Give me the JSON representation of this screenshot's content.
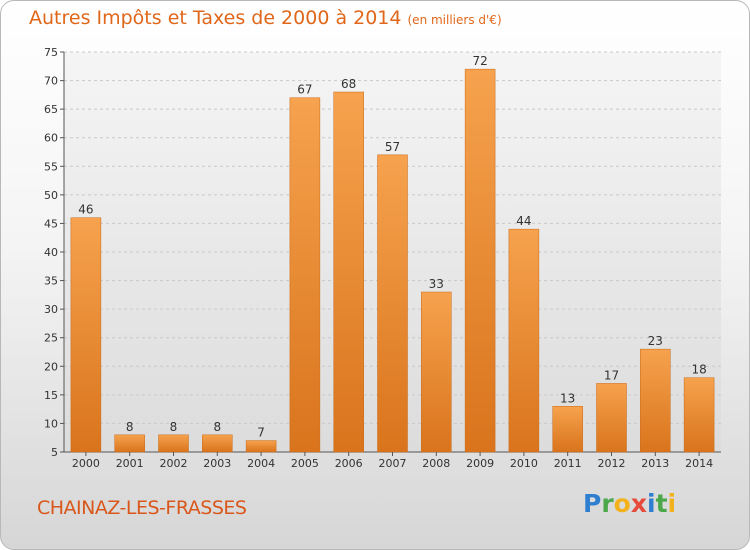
{
  "chart_data": {
    "type": "bar",
    "title": "Autres Impôts et Taxes de 2000 à 2014",
    "subtitle": "(en milliers d'€)",
    "categories": [
      "2000",
      "2001",
      "2002",
      "2003",
      "2004",
      "2005",
      "2006",
      "2007",
      "2008",
      "2009",
      "2010",
      "2011",
      "2012",
      "2013",
      "2014"
    ],
    "values": [
      46,
      8,
      8,
      8,
      7,
      67,
      68,
      57,
      33,
      72,
      44,
      13,
      17,
      23,
      18
    ],
    "ylim": [
      5,
      75
    ],
    "yticks": [
      5,
      10,
      15,
      20,
      25,
      30,
      35,
      40,
      45,
      50,
      55,
      60,
      65,
      70,
      75
    ],
    "grid": true,
    "bar_color": "#f28c28"
  },
  "footer": {
    "commune": "CHAINAZ-LES-FRASSES",
    "logo_letters": [
      {
        "ch": "P",
        "color": "#2f7fd0"
      },
      {
        "ch": "r",
        "color": "#4aa84a"
      },
      {
        "ch": "o",
        "color": "#f2b21c"
      },
      {
        "ch": "x",
        "color": "#e64a3c"
      },
      {
        "ch": "i",
        "color": "#2f7fd0"
      },
      {
        "ch": "t",
        "color": "#4aa84a"
      },
      {
        "ch": "i",
        "color": "#f2b21c"
      }
    ]
  }
}
